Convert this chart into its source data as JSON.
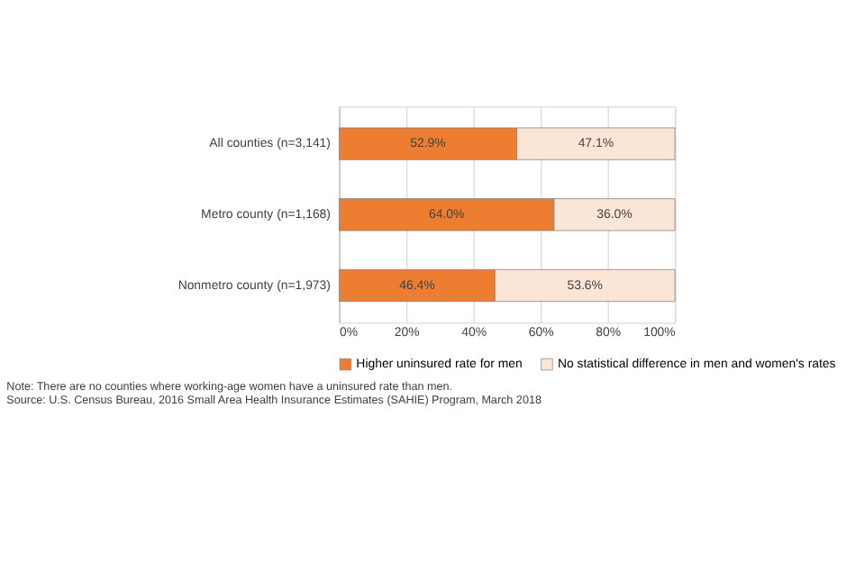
{
  "chart_data": {
    "type": "bar",
    "orientation": "horizontal",
    "stacked": true,
    "categories": [
      "All counties (n=3,141)",
      "Metro county (n=1,168)",
      "Nonmetro county (n=1,973)"
    ],
    "series": [
      {
        "name": "Higher uninsured rate for men",
        "color": "#ed7d31",
        "values": [
          52.9,
          64.0,
          46.4
        ],
        "value_labels": [
          "52.9%",
          "64.0%",
          "46.4%"
        ]
      },
      {
        "name": "No statistical difference in men and women's rates",
        "color": "#fbe5d6",
        "values": [
          47.1,
          36.0,
          53.6
        ],
        "value_labels": [
          "47.1%",
          "36.0%",
          "53.6%"
        ]
      }
    ],
    "xlim": [
      0,
      100
    ],
    "xticks": [
      {
        "value": 0,
        "label": "0%"
      },
      {
        "value": 20,
        "label": "20%"
      },
      {
        "value": 40,
        "label": "40%"
      },
      {
        "value": 60,
        "label": "60%"
      },
      {
        "value": 80,
        "label": "80%"
      },
      {
        "value": 100,
        "label": "100%"
      }
    ],
    "grid": "x",
    "legend": "bottom",
    "annotations": [
      "Note: There are no counties where working-age women have a uninsured rate than men.",
      "Source: U.S. Census Bureau, 2016 Small Area Health Insurance Estimates (SAHIE) Program, March 2018"
    ]
  }
}
